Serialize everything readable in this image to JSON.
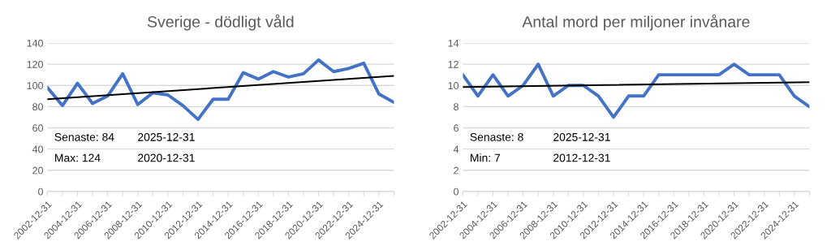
{
  "chart_data": [
    {
      "type": "line",
      "title": "Sverige - dödligt våld",
      "categories": [
        "2002-12-31",
        null,
        "2004-12-31",
        null,
        "2006-12-31",
        null,
        "2008-12-31",
        null,
        "2010-12-31",
        null,
        "2012-12-31",
        null,
        "2014-12-31",
        null,
        "2016-12-31",
        null,
        "2018-12-31",
        null,
        "2020-12-31",
        null,
        "2022-12-31",
        null,
        "2024-12-31",
        null
      ],
      "series": [
        {
          "color": "#4472c4",
          "values": [
            98,
            81,
            102,
            83,
            90,
            111,
            82,
            93,
            91,
            81,
            68,
            87,
            87,
            112,
            106,
            113,
            108,
            111,
            124,
            113,
            116,
            121,
            92,
            84
          ]
        },
        {
          "color": "#000000",
          "values": [
            87,
            null,
            null,
            null,
            null,
            null,
            null,
            null,
            null,
            null,
            null,
            null,
            null,
            null,
            null,
            null,
            null,
            null,
            null,
            null,
            null,
            null,
            null,
            109
          ]
        }
      ],
      "ylim": [
        0,
        140
      ],
      "yticks": [
        0,
        20,
        40,
        60,
        80,
        100,
        120,
        140
      ],
      "grid": "y",
      "legend": false,
      "annotations": [
        "Senaste: 84",
        "2025-12-31",
        "Max: 124",
        "2020-12-31"
      ]
    },
    {
      "type": "line",
      "title": "Antal mord per miljoner invånare",
      "categories": [
        "2002-12-31",
        null,
        "2004-12-31",
        null,
        "2006-12-31",
        null,
        "2008-12-31",
        null,
        "2010-12-31",
        null,
        "2012-12-31",
        null,
        "2014-12-31",
        null,
        "2016-12-31",
        null,
        "2018-12-31",
        null,
        "2020-12-31",
        null,
        "2022-12-31",
        null,
        "2024-12-31",
        null
      ],
      "series": [
        {
          "color": "#4472c4",
          "values": [
            11,
            9,
            11,
            9,
            10,
            12,
            9,
            10,
            10,
            9,
            7,
            9,
            9,
            11,
            11,
            11,
            11,
            11,
            12,
            11,
            11,
            11,
            9,
            8
          ]
        },
        {
          "color": "#000000",
          "values": [
            9.85,
            null,
            null,
            null,
            null,
            null,
            null,
            null,
            null,
            null,
            null,
            null,
            null,
            null,
            null,
            null,
            null,
            null,
            null,
            null,
            null,
            null,
            null,
            10.3
          ]
        }
      ],
      "ylim": [
        0,
        14
      ],
      "yticks": [
        0,
        2,
        4,
        6,
        8,
        10,
        12,
        14
      ],
      "grid": "y",
      "legend": false,
      "annotations": [
        "Senaste: 8",
        "2025-12-31",
        "Min: 7",
        "2012-12-31"
      ]
    }
  ]
}
